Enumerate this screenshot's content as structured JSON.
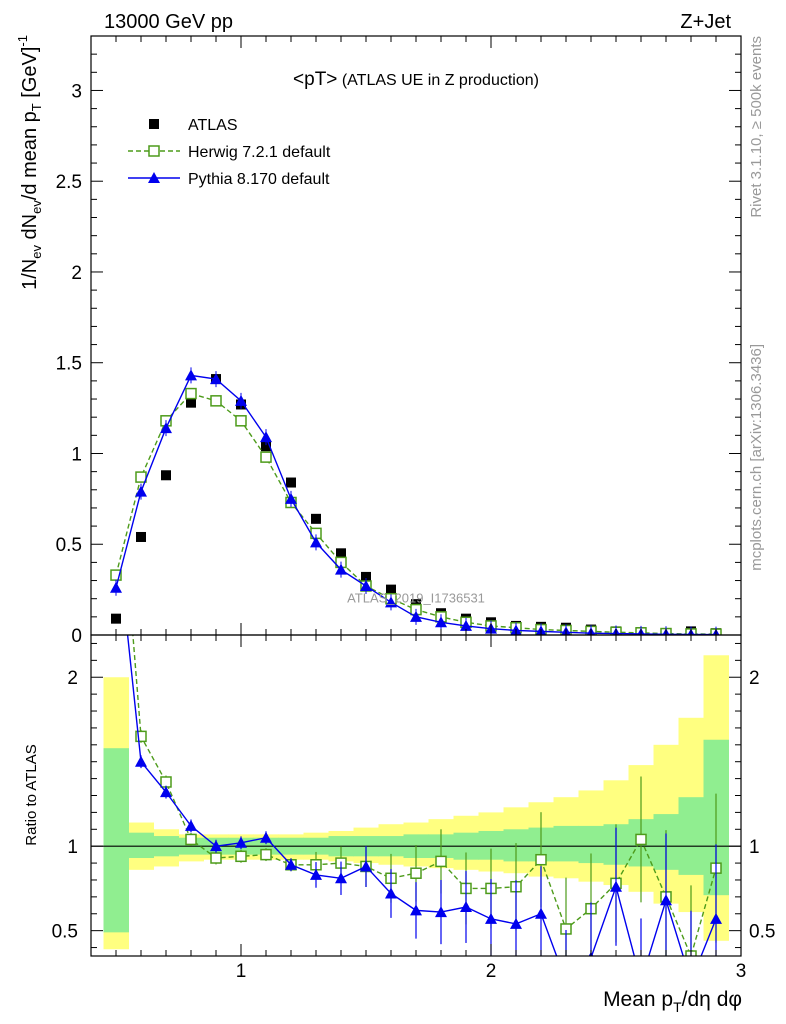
{
  "header": {
    "left": "13000 GeV pp",
    "right": "Z+Jet"
  },
  "side_labels": {
    "top": "Rivet 3.1.10, ≥ 500k events",
    "bottom": "mcplots.cern.ch [arXiv:1306.3436]"
  },
  "watermark": "ATLAS_2019_I1736531",
  "chart_data": [
    {
      "type": "scatter",
      "panel": "main",
      "title": "<pT> (ATLAS UE in Z production)",
      "ylabel": "1/N_ev dN_ev/d mean p_T [GeV]^-1",
      "xlim": [
        0.4,
        3.0
      ],
      "ylim": [
        0,
        3.3
      ],
      "yticks": [
        0,
        0.5,
        1,
        1.5,
        2,
        2.5,
        3
      ],
      "ytick_labels": [
        "0",
        "0.5",
        "1",
        "1.5",
        "2",
        "2.5",
        "3"
      ],
      "legend": [
        "ATLAS",
        "Herwig 7.2.1 default",
        "Pythia 8.170 default"
      ],
      "legend_position": "top-left",
      "x": [
        0.5,
        0.6,
        0.7,
        0.8,
        0.9,
        1.0,
        1.1,
        1.2,
        1.3,
        1.4,
        1.5,
        1.6,
        1.7,
        1.8,
        1.9,
        2.0,
        2.1,
        2.2,
        2.3,
        2.4,
        2.5,
        2.6,
        2.7,
        2.8,
        2.9
      ],
      "series": [
        {
          "name": "ATLAS",
          "color": "#000000",
          "marker": "filled-square",
          "values": [
            0.09,
            0.54,
            0.88,
            1.28,
            1.41,
            1.27,
            1.04,
            0.84,
            0.64,
            0.45,
            0.32,
            0.25,
            0.17,
            0.12,
            0.09,
            0.07,
            0.05,
            0.045,
            0.04,
            0.03,
            0.02,
            0.015,
            0.01,
            0.02,
            0.01
          ]
        },
        {
          "name": "Herwig 7.2.1 default",
          "color": "#4d9b1a",
          "marker": "open-square",
          "line": "dashed",
          "values": [
            0.33,
            0.87,
            1.18,
            1.33,
            1.29,
            1.18,
            0.98,
            0.73,
            0.56,
            0.4,
            0.27,
            0.2,
            0.14,
            0.1,
            0.07,
            0.05,
            0.04,
            0.03,
            0.025,
            0.02,
            0.015,
            0.012,
            0.008,
            0.006,
            0.005
          ]
        },
        {
          "name": "Pythia 8.170 default",
          "color": "#0000ee",
          "marker": "filled-triangle",
          "line": "solid",
          "values": [
            0.26,
            0.79,
            1.14,
            1.43,
            1.41,
            1.29,
            1.09,
            0.75,
            0.51,
            0.36,
            0.27,
            0.18,
            0.1,
            0.07,
            0.05,
            0.035,
            0.025,
            0.02,
            0.015,
            0.01,
            0.008,
            0.006,
            0.004,
            0.003,
            0.002
          ]
        }
      ]
    },
    {
      "type": "line",
      "panel": "ratio",
      "ylabel": "Ratio to ATLAS",
      "xlabel": "Mean p_T/dη dφ",
      "xlim": [
        0.4,
        3.0
      ],
      "ylim": [
        0.35,
        2.25
      ],
      "xticks": [
        1,
        2,
        3
      ],
      "xtick_labels": [
        "1",
        "2",
        "3"
      ],
      "yticks": [
        0.5,
        1,
        2
      ],
      "ytick_labels": [
        "0.5",
        "1",
        "2"
      ],
      "x": [
        0.5,
        0.6,
        0.7,
        0.8,
        0.9,
        1.0,
        1.1,
        1.2,
        1.3,
        1.4,
        1.5,
        1.6,
        1.7,
        1.8,
        1.9,
        2.0,
        2.1,
        2.2,
        2.3,
        2.4,
        2.5,
        2.6,
        2.7,
        2.8,
        2.9
      ],
      "bands": {
        "atlas_stat": {
          "color": "#90ee90",
          "lo": [
            0.49,
            0.93,
            0.94,
            0.95,
            0.95,
            0.95,
            0.95,
            0.95,
            0.95,
            0.94,
            0.94,
            0.94,
            0.93,
            0.93,
            0.92,
            0.92,
            0.91,
            0.91,
            0.91,
            0.9,
            0.89,
            0.88,
            0.86,
            0.83,
            0.71
          ],
          "hi": [
            1.58,
            1.08,
            1.06,
            1.05,
            1.05,
            1.05,
            1.05,
            1.05,
            1.05,
            1.06,
            1.06,
            1.06,
            1.07,
            1.07,
            1.08,
            1.09,
            1.1,
            1.11,
            1.12,
            1.12,
            1.13,
            1.16,
            1.19,
            1.29,
            1.63
          ]
        },
        "atlas_total": {
          "color": "#ffff80",
          "lo": [
            0.39,
            0.86,
            0.88,
            0.91,
            0.92,
            0.92,
            0.92,
            0.92,
            0.92,
            0.91,
            0.9,
            0.89,
            0.88,
            0.87,
            0.86,
            0.85,
            0.84,
            0.82,
            0.81,
            0.79,
            0.77,
            0.73,
            0.66,
            0.61,
            0.44
          ],
          "hi": [
            2.0,
            1.14,
            1.1,
            1.07,
            1.07,
            1.07,
            1.07,
            1.07,
            1.08,
            1.09,
            1.11,
            1.13,
            1.14,
            1.16,
            1.18,
            1.2,
            1.23,
            1.26,
            1.29,
            1.33,
            1.39,
            1.48,
            1.6,
            1.76,
            2.13
          ]
        }
      },
      "series": [
        {
          "name": "Herwig 7.2.1 default",
          "color": "#4d9b1a",
          "marker": "open-square",
          "line": "dashed",
          "values": [
            3.5,
            1.65,
            1.38,
            1.04,
            0.93,
            0.94,
            0.95,
            0.89,
            0.89,
            0.9,
            0.88,
            0.81,
            0.84,
            0.91,
            0.75,
            0.75,
            0.76,
            0.92,
            0.51,
            0.63,
            0.78,
            1.04,
            0.7,
            0.35,
            0.87
          ]
        },
        {
          "name": "Pythia 8.170 default",
          "color": "#0000ee",
          "marker": "filled-triangle",
          "line": "solid",
          "values": [
            2.9,
            1.5,
            1.32,
            1.12,
            1.0,
            1.02,
            1.05,
            0.89,
            0.83,
            0.81,
            0.88,
            0.72,
            0.62,
            0.61,
            0.64,
            0.57,
            0.54,
            0.6,
            0.2,
            0.34,
            0.76,
            0.2,
            0.68,
            0.2,
            0.57
          ]
        }
      ]
    }
  ]
}
